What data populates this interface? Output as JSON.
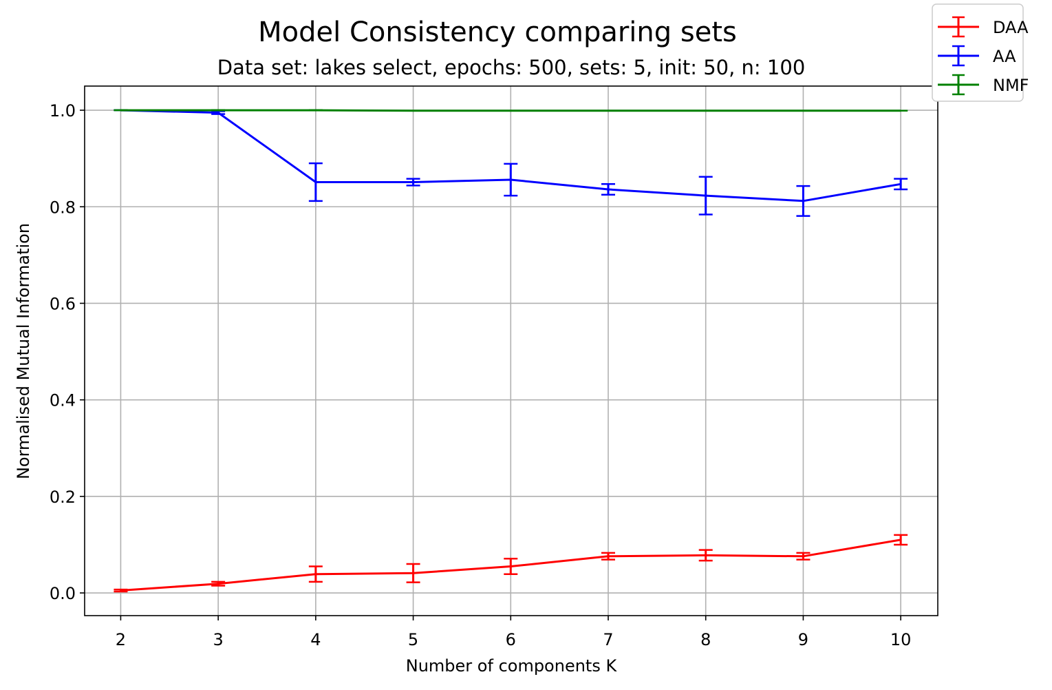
{
  "chart_data": {
    "type": "line",
    "title": "Model Consistency comparing sets",
    "subtitle": "Data set:  lakes select, epochs: 500, sets: 5, init: 50, n: 100",
    "xlabel": "Number of components K",
    "ylabel": "Normalised Mutual Information",
    "x": [
      2,
      3,
      4,
      5,
      6,
      7,
      8,
      9,
      10
    ],
    "xlim": [
      1.63,
      10.38
    ],
    "ylim": [
      -0.047,
      1.05
    ],
    "xticks": [
      "2",
      "3",
      "4",
      "5",
      "6",
      "7",
      "8",
      "9",
      "10"
    ],
    "yticks": [
      "0.0",
      "0.2",
      "0.4",
      "0.6",
      "0.8",
      "1.0"
    ],
    "grid": true,
    "legend_position": "top-right, outside plot",
    "series": [
      {
        "name": "DAA",
        "color": "#ff0000",
        "values": [
          0.005,
          0.019,
          0.039,
          0.041,
          0.055,
          0.076,
          0.078,
          0.076,
          0.11
        ],
        "errors": [
          0.002,
          0.004,
          0.016,
          0.019,
          0.016,
          0.007,
          0.011,
          0.007,
          0.01
        ]
      },
      {
        "name": "AA",
        "color": "#0000ff",
        "values": [
          1.0,
          0.995,
          0.851,
          0.851,
          0.856,
          0.836,
          0.823,
          0.812,
          0.847
        ],
        "errors": [
          0.0,
          0.003,
          0.039,
          0.007,
          0.033,
          0.011,
          0.039,
          0.031,
          0.011
        ]
      },
      {
        "name": "NMF",
        "color": "#008000",
        "values": [
          1.0,
          1.0,
          1.0,
          0.999,
          0.999,
          0.999,
          0.999,
          0.999,
          0.999
        ],
        "errors": [
          0.0,
          0.0,
          0.0,
          0.0,
          0.0,
          0.0,
          0.0,
          0.0,
          0.0
        ]
      }
    ]
  }
}
